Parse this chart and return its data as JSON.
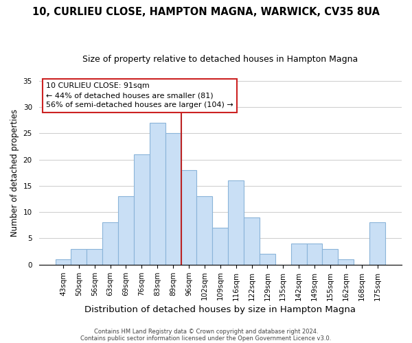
{
  "title": "10, CURLIEU CLOSE, HAMPTON MAGNA, WARWICK, CV35 8UA",
  "subtitle": "Size of property relative to detached houses in Hampton Magna",
  "xlabel": "Distribution of detached houses by size in Hampton Magna",
  "ylabel": "Number of detached properties",
  "bar_labels": [
    "43sqm",
    "50sqm",
    "56sqm",
    "63sqm",
    "69sqm",
    "76sqm",
    "83sqm",
    "89sqm",
    "96sqm",
    "102sqm",
    "109sqm",
    "116sqm",
    "122sqm",
    "129sqm",
    "135sqm",
    "142sqm",
    "149sqm",
    "155sqm",
    "162sqm",
    "168sqm",
    "175sqm"
  ],
  "bar_values": [
    1,
    3,
    3,
    8,
    13,
    21,
    27,
    25,
    18,
    13,
    7,
    16,
    9,
    2,
    0,
    4,
    4,
    3,
    1,
    0,
    8
  ],
  "bar_color": "#c9dff5",
  "bar_edge_color": "#8ab4d9",
  "vline_color": "#bb2222",
  "annotation_line1": "10 CURLIEU CLOSE: 91sqm",
  "annotation_line2": "← 44% of detached houses are smaller (81)",
  "annotation_line3": "56% of semi-detached houses are larger (104) →",
  "annotation_box_color": "#ffffff",
  "annotation_box_edge": "#cc2222",
  "ylim": [
    0,
    35
  ],
  "yticks": [
    0,
    5,
    10,
    15,
    20,
    25,
    30,
    35
  ],
  "footer1": "Contains HM Land Registry data © Crown copyright and database right 2024.",
  "footer2": "Contains public sector information licensed under the Open Government Licence v3.0.",
  "background_color": "#ffffff",
  "title_fontsize": 10.5,
  "subtitle_fontsize": 9,
  "ylabel_fontsize": 8.5,
  "xlabel_fontsize": 9.5,
  "tick_fontsize": 7.5,
  "footer_fontsize": 6,
  "annot_fontsize": 8
}
